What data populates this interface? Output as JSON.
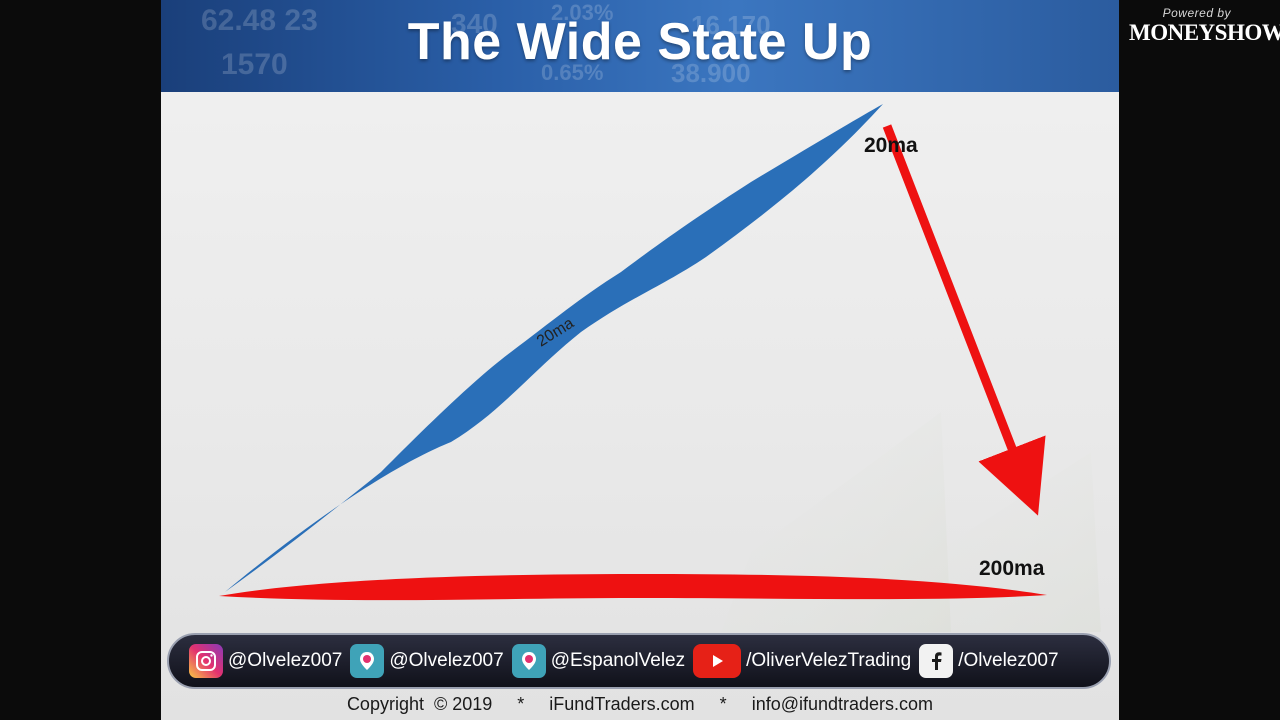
{
  "slide": {
    "title": "The Wide State Up",
    "labels": {
      "ma20_top": "20ma",
      "ma20_mid": "20ma",
      "ma200": "200ma"
    },
    "colors": {
      "ma20_band": "#2a6fb8",
      "ma200_band": "#ee1111",
      "arrow": "#ee1111"
    }
  },
  "social": {
    "items": [
      {
        "icon": "instagram-icon",
        "handle": "@Olvelez007"
      },
      {
        "icon": "periscope-icon",
        "handle": "@Olvelez007"
      },
      {
        "icon": "periscope-icon",
        "handle": "@EspanolVelez"
      },
      {
        "icon": "youtube-icon",
        "handle": "/OliverVelezTrading"
      },
      {
        "icon": "facebook-icon",
        "handle": "/Olvelez007"
      }
    ]
  },
  "footer": {
    "text": "Copyright  © 2019     *     iFundTraders.com     *     info@ifundtraders.com"
  },
  "brand": {
    "powered_by": "Powered by",
    "name": "MONEYSHOW"
  }
}
